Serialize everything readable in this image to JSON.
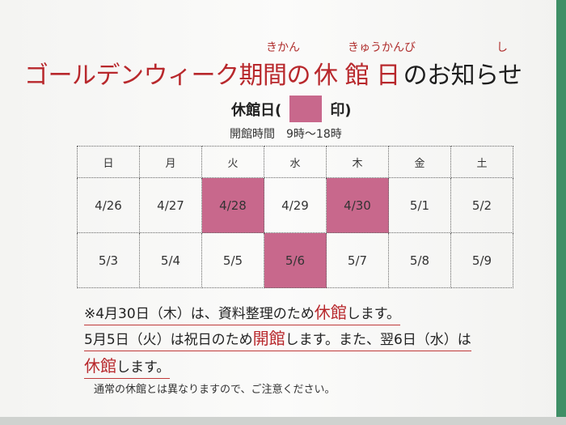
{
  "title": {
    "segments": [
      {
        "text": "ゴールデンウィーク期間の",
        "color": "#b8282c"
      },
      {
        "text": "休 館 日",
        "color": "#b8282c"
      },
      {
        "text": "のお知らせ",
        "color": "#1e1e1e"
      }
    ],
    "furigana": [
      "きかん",
      "きゅうかんび",
      "し"
    ]
  },
  "legend": {
    "prefix": "休館日(",
    "suffix": "印)",
    "color": "#c8688c"
  },
  "hours": "開館時間　9時～18時",
  "calendar": {
    "headers": [
      "日",
      "月",
      "火",
      "水",
      "木",
      "金",
      "土"
    ],
    "rows": [
      [
        {
          "date": "4/26",
          "closed": false
        },
        {
          "date": "4/27",
          "closed": false
        },
        {
          "date": "4/28",
          "closed": true
        },
        {
          "date": "4/29",
          "closed": false
        },
        {
          "date": "4/30",
          "closed": true
        },
        {
          "date": "5/1",
          "closed": false
        },
        {
          "date": "5/2",
          "closed": false
        }
      ],
      [
        {
          "date": "5/3",
          "closed": false
        },
        {
          "date": "5/4",
          "closed": false
        },
        {
          "date": "5/5",
          "closed": false
        },
        {
          "date": "5/6",
          "closed": true
        },
        {
          "date": "5/7",
          "closed": false
        },
        {
          "date": "5/8",
          "closed": false
        },
        {
          "date": "5/9",
          "closed": false
        }
      ]
    ]
  },
  "notes": [
    [
      {
        "text": "※4月30日（木）は、資料整理のため",
        "emphasis": false
      },
      {
        "text": "休館",
        "emphasis": true
      },
      {
        "text": "します。",
        "emphasis": false
      }
    ],
    [
      {
        "text": "5月5日（火）は祝日のため",
        "emphasis": false
      },
      {
        "text": "開館",
        "emphasis": true
      },
      {
        "text": "します。また、翌6日（水）は",
        "emphasis": false
      }
    ],
    [
      {
        "text": "休館",
        "emphasis": true
      },
      {
        "text": "します。",
        "emphasis": false
      }
    ]
  ],
  "footnote": "通常の休館とは異なりますので、ご注意ください。"
}
